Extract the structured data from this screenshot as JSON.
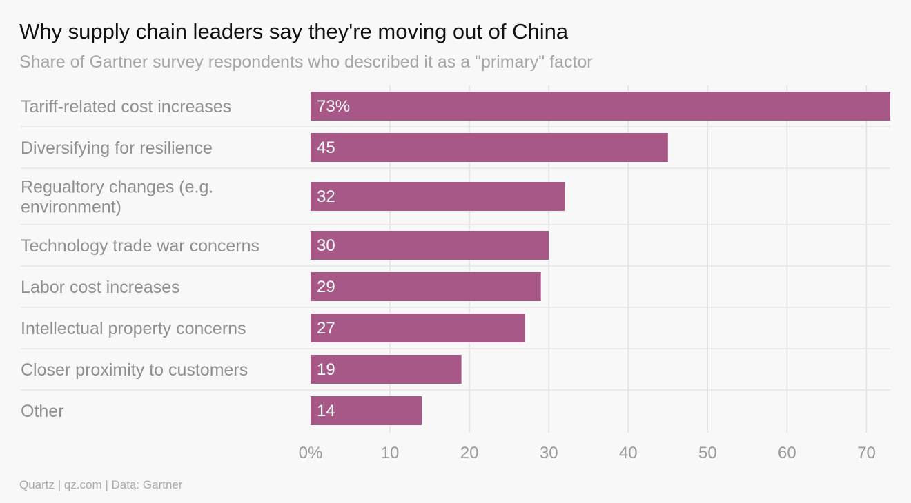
{
  "chart_data": {
    "type": "bar",
    "orientation": "horizontal",
    "title": "Why supply chain leaders say they're moving out of China",
    "subtitle": "Share of Gartner survey respondents who described it as a \"primary\" factor",
    "source": "Quartz | qz.com | Data: Gartner",
    "categories": [
      [
        "Tariff-related cost increases"
      ],
      [
        "Diversifying for resilience"
      ],
      [
        "Regualtory changes (e.g.",
        "environment)"
      ],
      [
        "Technology trade war concerns"
      ],
      [
        "Labor cost increases"
      ],
      [
        "Intellectual property concerns"
      ],
      [
        "Closer proximity to customers"
      ],
      [
        "Other"
      ]
    ],
    "values": [
      73,
      45,
      32,
      30,
      29,
      27,
      19,
      14
    ],
    "value_labels": [
      "73%",
      "45",
      "32",
      "30",
      "29",
      "27",
      "19",
      "14"
    ],
    "xlim": [
      0,
      73
    ],
    "xticks": [
      0,
      10,
      20,
      30,
      40,
      50,
      60,
      70
    ],
    "xtick_labels": [
      "0%",
      "10",
      "20",
      "30",
      "40",
      "50",
      "60",
      "70"
    ],
    "grid": true,
    "legend": "none",
    "colors": {
      "bar": "#a85887",
      "background": "#f8f8f8",
      "grid": "#e2e2e2",
      "separator": "#e6e6e6"
    }
  }
}
